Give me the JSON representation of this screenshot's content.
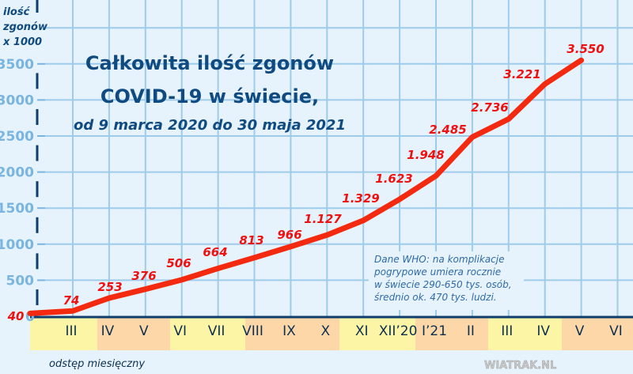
{
  "chart_data": {
    "type": "line",
    "title": "Całkowita ilość zgonów",
    "title_line2": "COVID-19 w świecie,",
    "subtitle": "od 9 marca 2020  do 30 maja 2021",
    "ylabel": [
      "ilość",
      "zgonów",
      "x 1000"
    ],
    "xlabel": "odstęp miesięczny",
    "ylim": [
      0,
      3500
    ],
    "yticks": [
      "0",
      "500",
      "1000",
      "1500",
      "2000",
      "2500",
      "3000",
      "3500"
    ],
    "grid": true,
    "months": [
      "III",
      "IV",
      "V",
      "VI",
      "VII",
      "VIII",
      "IX",
      "X",
      "XI",
      "XII’20",
      "I’21",
      "II",
      "III",
      "IV",
      "V",
      "VI"
    ],
    "points": [
      {
        "label": "40",
        "value": 40
      },
      {
        "label": "74",
        "value": 74
      },
      {
        "label": "253",
        "value": 253
      },
      {
        "label": "376",
        "value": 376
      },
      {
        "label": "506",
        "value": 506
      },
      {
        "label": "664",
        "value": 664
      },
      {
        "label": "813",
        "value": 813
      },
      {
        "label": "966",
        "value": 966
      },
      {
        "label": "1.127",
        "value": 1127
      },
      {
        "label": "1.329",
        "value": 1329
      },
      {
        "label": "1.623",
        "value": 1623
      },
      {
        "label": "1.948",
        "value": 1948
      },
      {
        "label": "2.485",
        "value": 2485
      },
      {
        "label": "2.736",
        "value": 2736
      },
      {
        "label": "3.221",
        "value": 3221
      },
      {
        "label": "3.550",
        "value": 3550
      }
    ],
    "line_color": "#f42a10",
    "note": [
      "Dane WHO: na komplikacje",
      "pogrypowe umiera rocznie",
      "w świecie 290-650 tys. osób,",
      "średnio ok. 470 tys. ludzi."
    ],
    "band_colors": [
      "#fdf5a6",
      "#fdd7a8"
    ]
  },
  "watermark": "WIATRAK.NL"
}
